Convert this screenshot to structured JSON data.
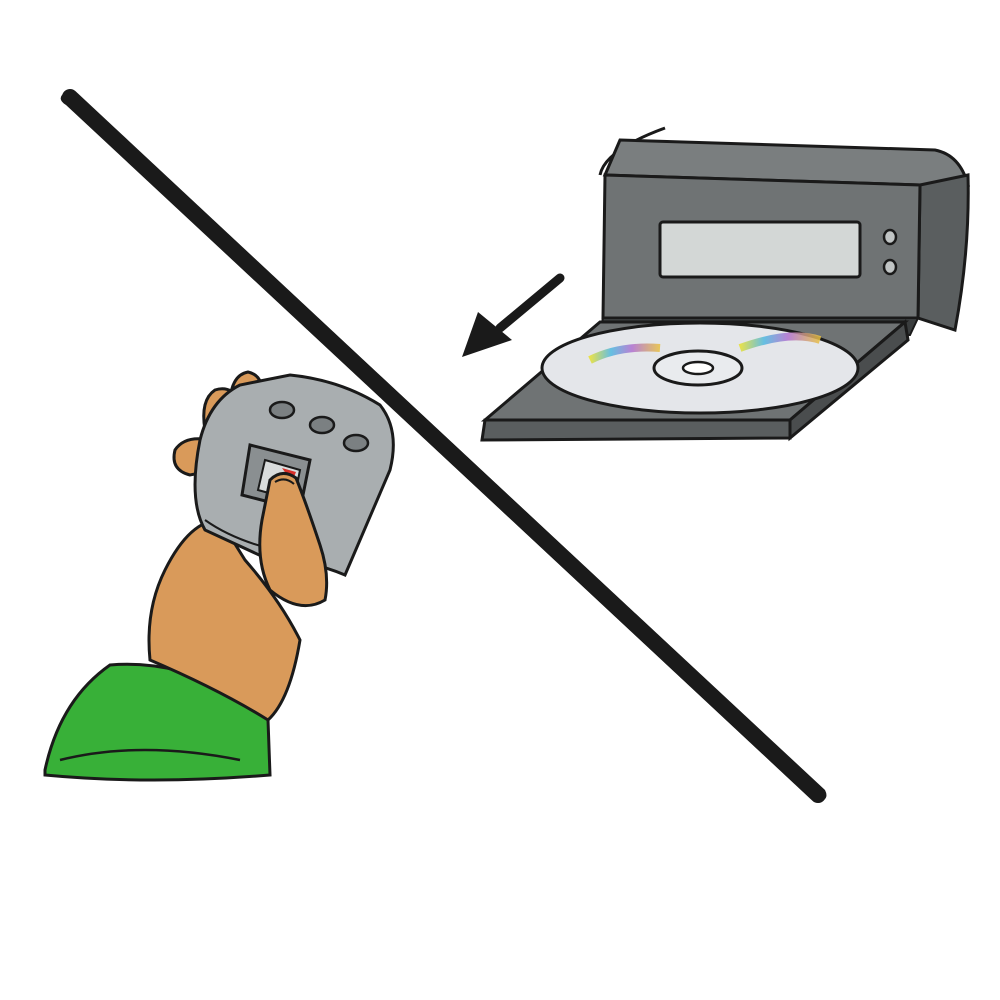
{
  "illustration": {
    "scene": "hand-held-device-vs-cd-player",
    "colors": {
      "background": "#ffffff",
      "outline": "#1a1a1a",
      "player_body": "#6f7374",
      "player_side": "#5a5e5f",
      "display_window": "#d3d7d6",
      "disc": "#e4e6ea",
      "skin": "#d99a5a",
      "sleeve": "#38b038",
      "device": "#a9aeb0",
      "arrow": "#1a1a1a",
      "slash": "#1a1a1a"
    },
    "icons": {
      "player": "cd-player-icon",
      "disc": "compact-disc-icon",
      "arrow": "arrow-down-left-icon",
      "hand": "hand-holding-device-icon",
      "slash": "prohibition-slash-icon"
    }
  }
}
